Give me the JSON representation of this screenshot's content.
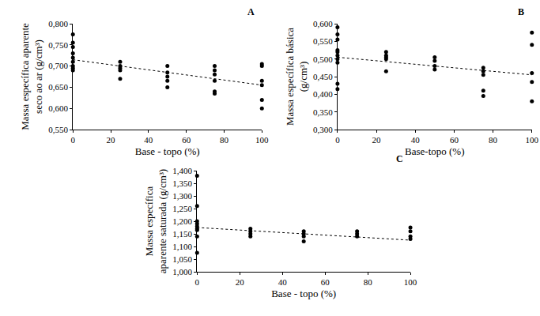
{
  "chart_data": [
    {
      "type": "scatter",
      "title": "A",
      "xlabel": "Base - topo (%)",
      "ylabel": [
        "Massa específica aparente",
        "seco ao ar (g/cm³)"
      ],
      "xlim": [
        0,
        100
      ],
      "xticks": [
        0,
        20,
        40,
        60,
        80,
        100
      ],
      "ylim": [
        0.55,
        0.8
      ],
      "yticks": [
        {
          "value": 0.55,
          "label": "0,550"
        },
        {
          "value": 0.6,
          "label": "0,600"
        },
        {
          "value": 0.65,
          "label": "0,650"
        },
        {
          "value": 0.7,
          "label": "0,700"
        },
        {
          "value": 0.75,
          "label": "0,750"
        },
        {
          "value": 0.8,
          "label": "0,800"
        }
      ],
      "grid": false,
      "series": [
        {
          "type": "scatter",
          "marker": "circle",
          "color": "#000000",
          "x": [
            0,
            0,
            0,
            0,
            0,
            0,
            0,
            0,
            0,
            25,
            25,
            25,
            25,
            25,
            50,
            50,
            50,
            50,
            50,
            75,
            75,
            75,
            75,
            75,
            75,
            100,
            100,
            100,
            100,
            100,
            100
          ],
          "values": [
            0.775,
            0.755,
            0.745,
            0.73,
            0.72,
            0.71,
            0.7,
            0.695,
            0.69,
            0.71,
            0.7,
            0.695,
            0.69,
            0.67,
            0.7,
            0.685,
            0.675,
            0.665,
            0.65,
            0.7,
            0.69,
            0.68,
            0.665,
            0.64,
            0.635,
            0.705,
            0.7,
            0.665,
            0.655,
            0.62,
            0.6
          ]
        },
        {
          "type": "line",
          "line_style": "dot",
          "color": "#000000",
          "x": [
            0,
            100
          ],
          "values": [
            0.715,
            0.655
          ]
        }
      ]
    },
    {
      "type": "scatter",
      "title": "B",
      "xlabel": "Base-topo (%)",
      "ylabel": [
        "Massa específica básica",
        "(g/cm³)"
      ],
      "xlim": [
        0,
        100
      ],
      "xticks": [
        0,
        20,
        40,
        60,
        80,
        100
      ],
      "ylim": [
        0.3,
        0.6
      ],
      "yticks": [
        {
          "value": 0.3,
          "label": "0,300"
        },
        {
          "value": 0.35,
          "label": "0,350"
        },
        {
          "value": 0.4,
          "label": "0,400"
        },
        {
          "value": 0.45,
          "label": "0,450"
        },
        {
          "value": 0.5,
          "label": "0,500"
        },
        {
          "value": 0.55,
          "label": "0,550"
        },
        {
          "value": 0.6,
          "label": "0,600"
        }
      ],
      "grid": false,
      "series": [
        {
          "type": "scatter",
          "marker": "circle",
          "color": "#000000",
          "x": [
            0,
            0,
            0,
            0,
            0,
            0,
            0,
            0,
            0,
            0,
            25,
            25,
            25,
            25,
            25,
            50,
            50,
            50,
            50,
            75,
            75,
            75,
            75,
            75,
            100,
            100,
            100,
            100,
            100
          ],
          "values": [
            0.59,
            0.57,
            0.555,
            0.525,
            0.52,
            0.51,
            0.5,
            0.49,
            0.43,
            0.415,
            0.52,
            0.51,
            0.505,
            0.5,
            0.465,
            0.505,
            0.495,
            0.48,
            0.47,
            0.475,
            0.465,
            0.455,
            0.41,
            0.395,
            0.575,
            0.54,
            0.46,
            0.435,
            0.38
          ]
        },
        {
          "type": "line",
          "line_style": "dot",
          "color": "#000000",
          "x": [
            0,
            100
          ],
          "values": [
            0.505,
            0.455
          ]
        }
      ]
    },
    {
      "type": "scatter",
      "title": "C",
      "xlabel": "Base - topo (%)",
      "ylabel": [
        "Massa específica",
        "aparente saturada (g/cm³)"
      ],
      "xlim": [
        0,
        100
      ],
      "xticks": [
        0,
        20,
        40,
        60,
        80,
        100
      ],
      "ylim": [
        1.0,
        1.4
      ],
      "yticks": [
        {
          "value": 1.0,
          "label": "1,000"
        },
        {
          "value": 1.05,
          "label": "1,050"
        },
        {
          "value": 1.1,
          "label": "1,100"
        },
        {
          "value": 1.15,
          "label": "1,150"
        },
        {
          "value": 1.2,
          "label": "1,200"
        },
        {
          "value": 1.25,
          "label": "1,250"
        },
        {
          "value": 1.3,
          "label": "1,300"
        },
        {
          "value": 1.35,
          "label": "1,350"
        },
        {
          "value": 1.4,
          "label": "1,400"
        }
      ],
      "grid": false,
      "series": [
        {
          "type": "scatter",
          "marker": "circle",
          "color": "#000000",
          "x": [
            0,
            0,
            0,
            0,
            0,
            0,
            0,
            0,
            0,
            25,
            25,
            25,
            25,
            50,
            50,
            50,
            50,
            75,
            75,
            75,
            100,
            100,
            100,
            100
          ],
          "values": [
            1.38,
            1.26,
            1.2,
            1.19,
            1.18,
            1.17,
            1.165,
            1.14,
            1.075,
            1.17,
            1.16,
            1.15,
            1.14,
            1.16,
            1.15,
            1.14,
            1.12,
            1.16,
            1.15,
            1.14,
            1.175,
            1.16,
            1.14,
            1.13
          ]
        },
        {
          "type": "line",
          "line_style": "dot",
          "color": "#000000",
          "x": [
            0,
            100
          ],
          "values": [
            1.175,
            1.125
          ]
        }
      ]
    }
  ]
}
